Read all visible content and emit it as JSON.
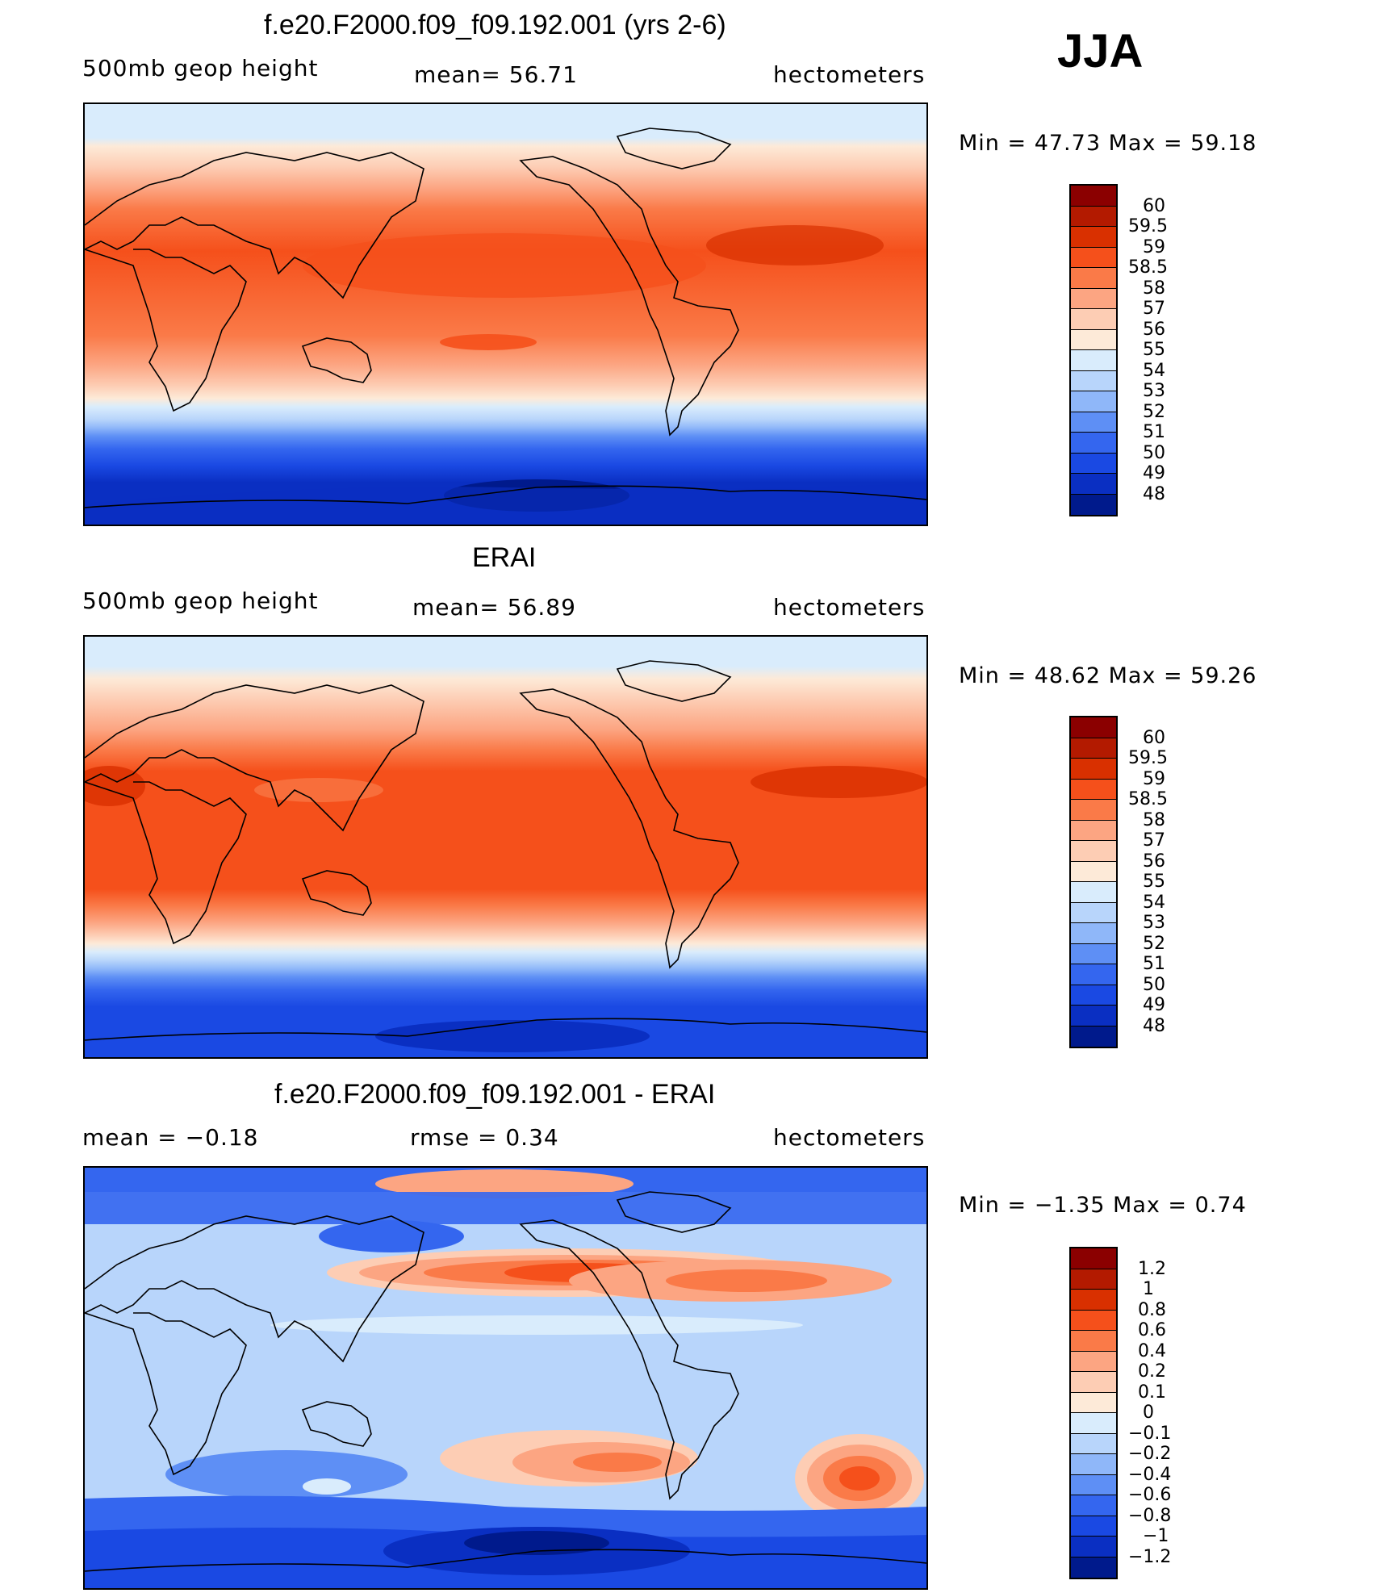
{
  "season": "JJA",
  "units_label": "hectometers",
  "panels": [
    {
      "id": "model",
      "title": "f.e20.F2000.f09_f09.192.001 (yrs 2-6)",
      "left_label": "500mb  geop  height",
      "mean_label": "mean=   56.71",
      "units": "hectometers",
      "min_max": "Min  =    47.73  Max  =    59.18",
      "colorbar": {
        "colors": [
          "#8b0000",
          "#b31a00",
          "#d93000",
          "#f5501b",
          "#fa7a48",
          "#fca582",
          "#fdcdb4",
          "#fdead8",
          "#d9ecfc",
          "#b8d5fb",
          "#8fb7f9",
          "#5e8ff5",
          "#3466ef",
          "#1a49e3",
          "#0a2fc2",
          "#001a8c"
        ],
        "labels": [
          "60",
          "59.5",
          "59",
          "58.5",
          "58",
          "57",
          "56",
          "55",
          "54",
          "53",
          "52",
          "51",
          "50",
          "49",
          "48"
        ]
      }
    },
    {
      "id": "obs",
      "title": "ERAI",
      "left_label": "500mb  geop  height",
      "mean_label": "mean=   56.89",
      "units": "hectometers",
      "min_max": "Min  =    48.62  Max  =    59.26",
      "colorbar": {
        "colors": [
          "#8b0000",
          "#b31a00",
          "#d93000",
          "#f5501b",
          "#fa7a48",
          "#fca582",
          "#fdcdb4",
          "#fdead8",
          "#d9ecfc",
          "#b8d5fb",
          "#8fb7f9",
          "#5e8ff5",
          "#3466ef",
          "#1a49e3",
          "#0a2fc2",
          "#001a8c"
        ],
        "labels": [
          "60",
          "59.5",
          "59",
          "58.5",
          "58",
          "57",
          "56",
          "55",
          "54",
          "53",
          "52",
          "51",
          "50",
          "49",
          "48"
        ]
      }
    },
    {
      "id": "diff",
      "title": "f.e20.F2000.f09_f09.192.001 - ERAI",
      "left_label": "mean  =    −0.18",
      "mean_label": "rmse  =     0.34",
      "units": "hectometers",
      "min_max": "Min  =    −1.35  Max  =      0.74",
      "colorbar": {
        "colors": [
          "#8b0000",
          "#b31a00",
          "#d93000",
          "#f5501b",
          "#fa7a48",
          "#fca582",
          "#fdcdb4",
          "#fdead8",
          "#d9ecfc",
          "#b8d5fb",
          "#8fb7f9",
          "#5e8ff5",
          "#3466ef",
          "#1a49e3",
          "#0a2fc2",
          "#001a8c"
        ],
        "labels": [
          "1.2",
          "1",
          "0.8",
          "0.6",
          "0.4",
          "0.2",
          "0.1",
          "0",
          "−0.1",
          "−0.2",
          "−0.4",
          "−0.6",
          "−0.8",
          "−1",
          "−1.2"
        ]
      }
    }
  ]
}
